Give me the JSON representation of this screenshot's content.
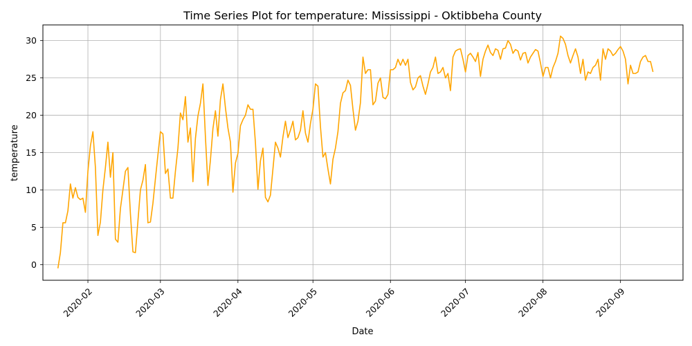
{
  "chart_data": {
    "type": "line",
    "title": "Time Series Plot for temperature: Mississippi - Oktibbeha County",
    "xlabel": "Date",
    "ylabel": "temperature",
    "line_color": "#FFA500",
    "grid": true,
    "legend": "none",
    "x_is_date": true,
    "xlim": [
      "2020-01-14",
      "2020-09-26"
    ],
    "ylim": [
      -2.1,
      32.1
    ],
    "xticks": [
      "2020-02-01",
      "2020-03-01",
      "2020-04-01",
      "2020-05-01",
      "2020-06-01",
      "2020-07-01",
      "2020-08-01",
      "2020-09-01"
    ],
    "xtick_labels": [
      "2020-02",
      "2020-03",
      "2020-04",
      "2020-05",
      "2020-06",
      "2020-07",
      "2020-08",
      "2020-09"
    ],
    "yticks": [
      0,
      5,
      10,
      15,
      20,
      25,
      30
    ],
    "ytick_labels": [
      "0",
      "5",
      "10",
      "15",
      "20",
      "25",
      "30"
    ],
    "series": [
      {
        "x_start": "2020-01-20",
        "x_step_days": 1,
        "values": [
          -0.5,
          1.6,
          5.6,
          5.6,
          7.2,
          10.8,
          8.9,
          10.3,
          9.0,
          8.7,
          8.9,
          7.0,
          12.5,
          15.9,
          17.8,
          13.0,
          3.9,
          5.7,
          10.0,
          13.0,
          16.4,
          11.7,
          15.0,
          3.4,
          3.0,
          7.5,
          10.0,
          12.5,
          13.0,
          6.8,
          1.7,
          1.6,
          5.8,
          10.0,
          11.3,
          13.4,
          5.6,
          5.7,
          8.2,
          11.5,
          14.7,
          17.8,
          17.5,
          12.2,
          12.8,
          8.9,
          8.9,
          12.5,
          15.6,
          20.3,
          19.4,
          22.5,
          16.4,
          18.3,
          11.1,
          16.9,
          19.9,
          21.6,
          24.2,
          17.1,
          10.6,
          14.0,
          18.2,
          20.6,
          17.2,
          22.1,
          24.2,
          21.0,
          18.3,
          16.4,
          9.7,
          13.6,
          14.9,
          18.6,
          19.4,
          20.0,
          21.4,
          20.8,
          20.8,
          16.3,
          10.1,
          13.9,
          15.6,
          9.0,
          8.4,
          9.3,
          12.8,
          16.4,
          15.6,
          14.4,
          17.1,
          19.2,
          17.0,
          18.0,
          19.2,
          16.7,
          17.0,
          18.0,
          20.6,
          17.6,
          16.4,
          18.9,
          20.8,
          24.2,
          23.9,
          18.5,
          14.4,
          15.0,
          12.8,
          10.8,
          14.1,
          15.6,
          17.8,
          21.6,
          23.0,
          23.3,
          24.7,
          24.0,
          20.8,
          18.0,
          19.2,
          21.7,
          27.8,
          25.6,
          26.1,
          26.1,
          21.4,
          21.9,
          24.3,
          25.0,
          22.4,
          22.2,
          22.8,
          26.1,
          26.1,
          26.4,
          27.5,
          26.7,
          27.5,
          26.7,
          27.5,
          24.4,
          23.4,
          23.8,
          25.0,
          25.3,
          23.9,
          22.8,
          24.2,
          25.8,
          26.4,
          27.8,
          25.6,
          25.8,
          26.4,
          25.0,
          25.6,
          23.3,
          27.8,
          28.6,
          28.8,
          28.9,
          27.5,
          25.8,
          28.0,
          28.3,
          27.8,
          27.2,
          28.4,
          25.2,
          27.5,
          28.6,
          29.4,
          28.4,
          28.0,
          28.9,
          28.7,
          27.5,
          28.9,
          29.0,
          30.0,
          29.5,
          28.3,
          28.8,
          28.6,
          27.4,
          28.3,
          28.4,
          27.0,
          27.8,
          28.3,
          28.8,
          28.6,
          27.0,
          25.2,
          26.4,
          26.4,
          25.0,
          26.4,
          27.2,
          28.3,
          30.6,
          30.3,
          29.5,
          28.0,
          27.0,
          28.0,
          28.9,
          27.8,
          25.6,
          27.5,
          24.7,
          25.8,
          25.6,
          26.4,
          26.7,
          27.5,
          24.7,
          28.9,
          27.5,
          28.9,
          28.6,
          28.0,
          28.3,
          28.8,
          29.2,
          28.6,
          27.5,
          24.2,
          26.7,
          25.6,
          25.6,
          25.8,
          27.2,
          27.8,
          28.0,
          27.2,
          27.2,
          25.8
        ]
      }
    ]
  }
}
